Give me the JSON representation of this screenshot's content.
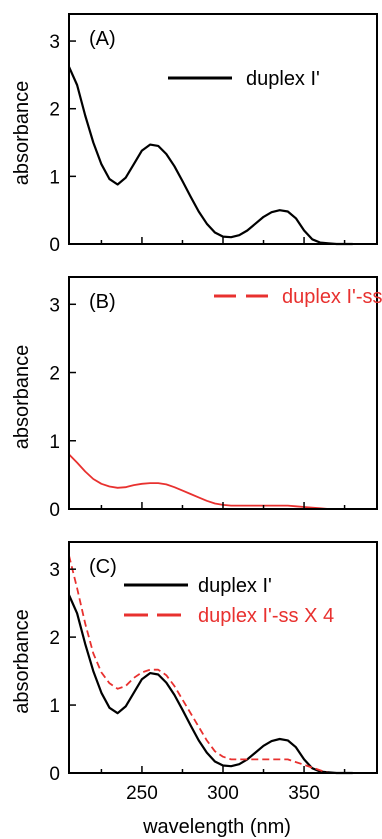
{
  "chart_data": [
    {
      "type": "line",
      "panel_label": "(A)",
      "ylabel": "absorbance",
      "xlim": [
        205,
        395
      ],
      "ylim": [
        0,
        3.4
      ],
      "yticks": [
        "0",
        "1",
        "2",
        "3"
      ],
      "xticks": [],
      "xlabel": "",
      "grid": false,
      "legend_position": "top-right",
      "series": [
        {
          "name": "duplex I'",
          "color": "#000000",
          "dash": "solid",
          "x": [
            205,
            210,
            215,
            220,
            225,
            230,
            235,
            240,
            245,
            250,
            255,
            260,
            265,
            270,
            275,
            280,
            285,
            290,
            295,
            300,
            305,
            310,
            315,
            320,
            325,
            330,
            335,
            340,
            345,
            350,
            355,
            360,
            365,
            370,
            375,
            380
          ],
          "y": [
            2.62,
            2.35,
            1.9,
            1.5,
            1.18,
            0.96,
            0.88,
            0.98,
            1.18,
            1.38,
            1.47,
            1.45,
            1.33,
            1.15,
            0.93,
            0.7,
            0.48,
            0.3,
            0.17,
            0.11,
            0.1,
            0.13,
            0.2,
            0.3,
            0.4,
            0.47,
            0.5,
            0.48,
            0.38,
            0.2,
            0.07,
            0.02,
            0.01,
            0.0,
            0.0,
            0.0
          ]
        }
      ]
    },
    {
      "type": "line",
      "panel_label": "(B)",
      "ylabel": "absorbance",
      "xlim": [
        205,
        395
      ],
      "ylim": [
        0,
        3.4
      ],
      "yticks": [
        "0",
        "1",
        "2",
        "3"
      ],
      "xticks": [],
      "xlabel": "",
      "grid": false,
      "legend_position": "top-right",
      "series": [
        {
          "name": "duplex I'-ss",
          "color": "#e8312f",
          "dash": "dashed",
          "x": [
            205,
            210,
            215,
            220,
            225,
            230,
            235,
            240,
            245,
            250,
            255,
            260,
            265,
            270,
            275,
            280,
            285,
            290,
            295,
            300,
            305,
            310,
            315,
            320,
            325,
            330,
            335,
            340,
            345,
            350,
            355,
            360,
            365,
            370,
            380,
            395
          ],
          "y": [
            0.8,
            0.68,
            0.55,
            0.44,
            0.37,
            0.33,
            0.31,
            0.32,
            0.35,
            0.37,
            0.38,
            0.38,
            0.36,
            0.32,
            0.27,
            0.22,
            0.17,
            0.12,
            0.08,
            0.06,
            0.05,
            0.05,
            0.05,
            0.05,
            0.05,
            0.05,
            0.05,
            0.05,
            0.04,
            0.03,
            0.02,
            0.01,
            0.0,
            0.0,
            0.0,
            0.0
          ]
        }
      ]
    },
    {
      "type": "line",
      "panel_label": "(C)",
      "ylabel": "absorbance",
      "xlabel": "wavelength (nm)",
      "xlim": [
        205,
        395
      ],
      "ylim": [
        0,
        3.4
      ],
      "yticks": [
        "0",
        "1",
        "2",
        "3"
      ],
      "xticks": [
        "250",
        "300",
        "350"
      ],
      "grid": false,
      "legend_position": "top-right",
      "series": [
        {
          "name": "duplex I'",
          "color": "#000000",
          "dash": "solid",
          "x": [
            205,
            210,
            215,
            220,
            225,
            230,
            235,
            240,
            245,
            250,
            255,
            260,
            265,
            270,
            275,
            280,
            285,
            290,
            295,
            300,
            305,
            310,
            315,
            320,
            325,
            330,
            335,
            340,
            345,
            350,
            355,
            360,
            365,
            370,
            375,
            380
          ],
          "y": [
            2.62,
            2.35,
            1.9,
            1.5,
            1.18,
            0.96,
            0.88,
            0.98,
            1.18,
            1.38,
            1.47,
            1.45,
            1.33,
            1.15,
            0.93,
            0.7,
            0.48,
            0.3,
            0.17,
            0.11,
            0.1,
            0.13,
            0.2,
            0.3,
            0.4,
            0.47,
            0.5,
            0.48,
            0.38,
            0.2,
            0.07,
            0.02,
            0.01,
            0.0,
            0.0,
            0.0
          ]
        },
        {
          "name": "duplex I'-ss X 4",
          "color": "#e8312f",
          "dash": "dashed",
          "x": [
            205,
            210,
            215,
            220,
            225,
            230,
            235,
            240,
            245,
            250,
            255,
            260,
            265,
            270,
            275,
            280,
            285,
            290,
            295,
            300,
            305,
            310,
            315,
            320,
            325,
            330,
            335,
            340,
            345,
            350,
            355,
            360,
            365,
            370,
            380,
            395
          ],
          "y": [
            3.2,
            2.72,
            2.2,
            1.76,
            1.48,
            1.32,
            1.24,
            1.28,
            1.4,
            1.48,
            1.52,
            1.52,
            1.44,
            1.28,
            1.08,
            0.88,
            0.68,
            0.48,
            0.32,
            0.24,
            0.2,
            0.2,
            0.2,
            0.2,
            0.2,
            0.2,
            0.2,
            0.2,
            0.16,
            0.12,
            0.08,
            0.04,
            0.0,
            0.0,
            0.0,
            0.0
          ]
        }
      ]
    }
  ]
}
